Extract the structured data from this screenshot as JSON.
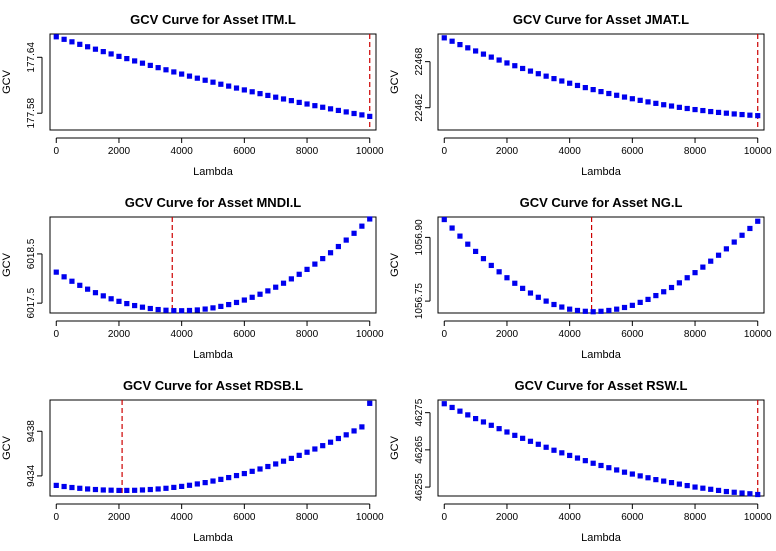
{
  "colors": {
    "points": "#0000EE",
    "optimum_line": "#CC0000"
  },
  "chart_data": [
    {
      "type": "scatter",
      "title": "GCV Curve for Asset ITM.L",
      "xlabel": "Lambda",
      "ylabel": "GCV",
      "xlim": [
        -200,
        10200
      ],
      "ylim": [
        177.562,
        177.665
      ],
      "xticks": [
        "0",
        "2000",
        "4000",
        "6000",
        "8000",
        "10000"
      ],
      "yticks": [
        {
          "value": 177.58,
          "label": "177.58"
        },
        {
          "value": 177.64,
          "label": "177.64"
        }
      ],
      "x": [
        0,
        250,
        500,
        750,
        1000,
        1250,
        1500,
        1750,
        2000,
        2250,
        2500,
        2750,
        3000,
        3250,
        3500,
        3750,
        4000,
        4250,
        4500,
        4750,
        5000,
        5250,
        5500,
        5750,
        6000,
        6250,
        6500,
        6750,
        7000,
        7250,
        7500,
        7750,
        8000,
        8250,
        8500,
        8750,
        9000,
        9250,
        9500,
        9750,
        10000
      ],
      "y": [
        177.662,
        177.6593,
        177.6566,
        177.6539,
        177.6513,
        177.6487,
        177.6461,
        177.6436,
        177.641,
        177.6386,
        177.6361,
        177.6337,
        177.6313,
        177.6289,
        177.6266,
        177.6243,
        177.622,
        177.6198,
        177.6176,
        177.6154,
        177.6133,
        177.6111,
        177.6091,
        177.607,
        177.605,
        177.603,
        177.601,
        177.5991,
        177.5972,
        177.5953,
        177.5935,
        177.5916,
        177.5899,
        177.5881,
        177.5864,
        177.5847,
        177.583,
        177.5814,
        177.5797,
        177.5782,
        177.5766
      ],
      "optimal_lambda": 10000
    },
    {
      "type": "scatter",
      "title": "GCV Curve for Asset JMAT.L",
      "xlabel": "Lambda",
      "ylabel": "GCV",
      "xlim": [
        -200,
        10200
      ],
      "ylim": [
        22459.1,
        22471.6
      ],
      "xticks": [
        "0",
        "2000",
        "4000",
        "6000",
        "8000",
        "10000"
      ],
      "yticks": [
        {
          "value": 22462,
          "label": "22462"
        },
        {
          "value": 22468,
          "label": "22468"
        }
      ],
      "x": [
        0,
        250,
        500,
        750,
        1000,
        1250,
        1500,
        1750,
        2000,
        2250,
        2500,
        2750,
        3000,
        3250,
        3500,
        3750,
        4000,
        4250,
        4500,
        4750,
        5000,
        5250,
        5500,
        5750,
        6000,
        6250,
        6500,
        6750,
        7000,
        7250,
        7500,
        7750,
        8000,
        8250,
        8500,
        8750,
        9000,
        9250,
        9500,
        9750,
        10000
      ],
      "y": [
        22471.1,
        22470.66,
        22470.22,
        22469.8,
        22469.39,
        22468.98,
        22468.59,
        22468.21,
        22467.83,
        22467.47,
        22467.11,
        22466.77,
        22466.43,
        22466.11,
        22465.79,
        22465.48,
        22465.19,
        22464.9,
        22464.62,
        22464.36,
        22464.1,
        22463.85,
        22463.62,
        22463.39,
        22463.17,
        22462.96,
        22462.76,
        22462.57,
        22462.39,
        22462.22,
        22462.05,
        22461.9,
        22461.76,
        22461.63,
        22461.5,
        22461.39,
        22461.29,
        22461.19,
        22461.11,
        22461.03,
        22460.97
      ],
      "optimal_lambda": 10000
    },
    {
      "type": "scatter",
      "title": "GCV Curve for Asset MNDI.L",
      "xlabel": "Lambda",
      "ylabel": "GCV",
      "xlim": [
        -200,
        10200
      ],
      "ylim": [
        6017.3,
        6019.25
      ],
      "xticks": [
        "0",
        "2000",
        "4000",
        "6000",
        "8000",
        "10000"
      ],
      "yticks": [
        {
          "value": 6017.5,
          "label": "6017.5"
        },
        {
          "value": 6018.5,
          "label": "6018.5"
        }
      ],
      "x": [
        0,
        250,
        500,
        750,
        1000,
        1250,
        1500,
        1750,
        2000,
        2250,
        2500,
        2750,
        3000,
        3250,
        3500,
        3750,
        4000,
        4250,
        4500,
        4750,
        5000,
        5250,
        5500,
        5750,
        6000,
        6250,
        6500,
        6750,
        7000,
        7250,
        7500,
        7750,
        8000,
        8250,
        8500,
        8750,
        9000,
        9250,
        9500,
        9750,
        10000
      ],
      "y": [
        6018.13,
        6018.035,
        6017.945,
        6017.862,
        6017.784,
        6017.713,
        6017.648,
        6017.589,
        6017.537,
        6017.491,
        6017.451,
        6017.418,
        6017.391,
        6017.37,
        6017.356,
        6017.348,
        6017.346,
        6017.351,
        6017.362,
        6017.38,
        6017.404,
        6017.434,
        6017.471,
        6017.514,
        6017.563,
        6017.619,
        6017.681,
        6017.749,
        6017.824,
        6017.905,
        6017.993,
        6018.086,
        6018.186,
        6018.293,
        6018.405,
        6018.524,
        6018.65,
        6018.781,
        6018.919,
        6019.064,
        6019.21
      ],
      "optimal_lambda": 3700
    },
    {
      "type": "scatter",
      "title": "GCV Curve for Asset NG.L",
      "xlabel": "Lambda",
      "ylabel": "GCV",
      "xlim": [
        -200,
        10200
      ],
      "ylim": [
        1056.722,
        1056.948
      ],
      "xticks": [
        "0",
        "2000",
        "4000",
        "6000",
        "8000",
        "10000"
      ],
      "yticks": [
        {
          "value": 1056.75,
          "label": "1056.75"
        },
        {
          "value": 1056.9,
          "label": "1056.90"
        }
      ],
      "x": [
        0,
        250,
        500,
        750,
        1000,
        1250,
        1500,
        1750,
        2000,
        2250,
        2500,
        2750,
        3000,
        3250,
        3500,
        3750,
        4000,
        4250,
        4500,
        4750,
        5000,
        5250,
        5500,
        5750,
        6000,
        6250,
        6500,
        6750,
        7000,
        7250,
        7500,
        7750,
        8000,
        8250,
        8500,
        8750,
        9000,
        9250,
        9500,
        9750,
        10000
      ],
      "y": [
        1056.942,
        1056.922,
        1056.903,
        1056.884,
        1056.867,
        1056.85,
        1056.834,
        1056.819,
        1056.805,
        1056.792,
        1056.78,
        1056.769,
        1056.759,
        1056.75,
        1056.742,
        1056.736,
        1056.731,
        1056.728,
        1056.726,
        1056.725,
        1056.726,
        1056.728,
        1056.731,
        1056.735,
        1056.74,
        1056.747,
        1056.754,
        1056.763,
        1056.772,
        1056.782,
        1056.793,
        1056.805,
        1056.817,
        1056.83,
        1056.844,
        1056.858,
        1056.873,
        1056.889,
        1056.905,
        1056.921,
        1056.938
      ],
      "optimal_lambda": 4700
    },
    {
      "type": "scatter",
      "title": "GCV Curve for Asset RDSB.L",
      "xlabel": "Lambda",
      "ylabel": "GCV",
      "xlim": [
        -200,
        10200
      ],
      "ylim": [
        9432.2,
        9440.8
      ],
      "xticks": [
        "0",
        "2000",
        "4000",
        "6000",
        "8000",
        "10000"
      ],
      "yticks": [
        {
          "value": 9434,
          "label": "9434"
        },
        {
          "value": 9438,
          "label": "9438"
        }
      ],
      "x": [
        0,
        250,
        500,
        750,
        1000,
        1250,
        1500,
        1750,
        2000,
        2250,
        2500,
        2750,
        3000,
        3250,
        3500,
        3750,
        4000,
        4250,
        4500,
        4750,
        5000,
        5250,
        5500,
        5750,
        6000,
        6250,
        6500,
        6750,
        7000,
        7250,
        7500,
        7750,
        8000,
        8250,
        8500,
        8750,
        9000,
        9250,
        9500,
        9750,
        10000
      ],
      "y": [
        9433.15,
        9433.05,
        9432.96,
        9432.89,
        9432.83,
        9432.78,
        9432.74,
        9432.72,
        9432.7,
        9432.7,
        9432.71,
        9432.74,
        9432.78,
        9432.83,
        9432.89,
        9432.97,
        9433.06,
        9433.16,
        9433.28,
        9433.4,
        9433.54,
        9433.69,
        9433.85,
        9434.03,
        9434.21,
        9434.41,
        9434.62,
        9434.84,
        9435.07,
        9435.32,
        9435.57,
        9435.84,
        9436.12,
        9436.41,
        9436.71,
        9437.02,
        9437.35,
        9437.68,
        9438.03,
        9438.39,
        9440.5
      ],
      "optimal_lambda": 2100
    },
    {
      "type": "scatter",
      "title": "GCV Curve for Asset RSW.L",
      "xlabel": "Lambda",
      "ylabel": "GCV",
      "xlim": [
        -200,
        10200
      ],
      "ylim": [
        46252.6,
        46278.4
      ],
      "xticks": [
        "0",
        "2000",
        "4000",
        "6000",
        "8000",
        "10000"
      ],
      "yticks": [
        {
          "value": 46255,
          "label": "46255"
        },
        {
          "value": 46265,
          "label": "46265"
        },
        {
          "value": 46275,
          "label": "46275"
        }
      ],
      "x": [
        0,
        250,
        500,
        750,
        1000,
        1250,
        1500,
        1750,
        2000,
        2250,
        2500,
        2750,
        3000,
        3250,
        3500,
        3750,
        4000,
        4250,
        4500,
        4750,
        5000,
        5250,
        5500,
        5750,
        6000,
        6250,
        6500,
        6750,
        7000,
        7250,
        7500,
        7750,
        8000,
        8250,
        8500,
        8750,
        9000,
        9250,
        9500,
        9750,
        10000
      ],
      "y": [
        46277.4,
        46276.4,
        46275.4,
        46274.4,
        46273.4,
        46272.5,
        46271.6,
        46270.7,
        46269.8,
        46268.9,
        46268.1,
        46267.3,
        46266.5,
        46265.7,
        46264.9,
        46264.2,
        46263.5,
        46262.8,
        46262.1,
        46261.4,
        46260.8,
        46260.2,
        46259.6,
        46259.0,
        46258.5,
        46258.0,
        46257.5,
        46257.0,
        46256.6,
        46256.2,
        46255.8,
        46255.4,
        46255.0,
        46254.7,
        46254.4,
        46254.1,
        46253.8,
        46253.6,
        46253.4,
        46253.2,
        46253.0
      ],
      "optimal_lambda": 10000
    }
  ]
}
